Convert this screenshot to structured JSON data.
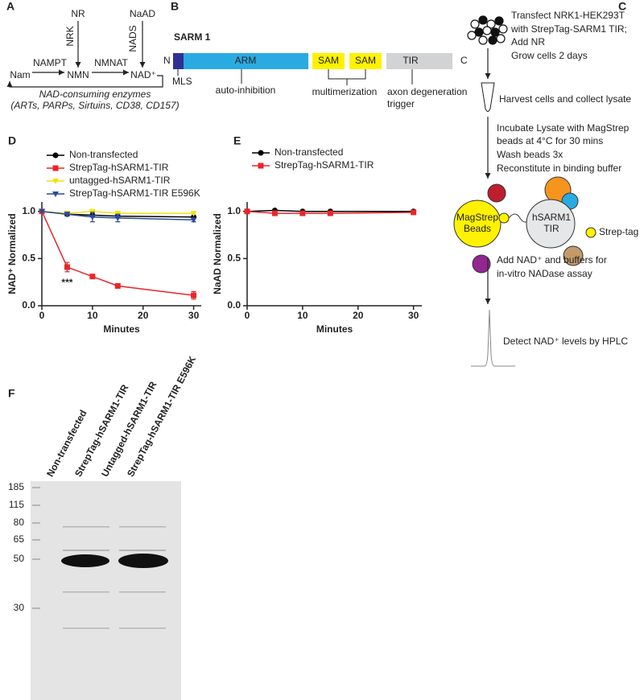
{
  "panel_a": {
    "label": "A",
    "nr": "NR",
    "naad": "NaAD",
    "nrk": "NRK",
    "nads": "NADS",
    "nampt": "NAMPT",
    "nmnat": "NMNAT",
    "nam": "Nam",
    "nmn": "NMN",
    "nad": "NAD⁺",
    "consumers": "NAD-consuming enzymes",
    "consumers_list": "(ARTs, PARPs, Sirtuins, CD38, CD157)"
  },
  "panel_b": {
    "label": "B",
    "protein": "SARM 1",
    "n_term": "N",
    "c_term": "C",
    "arm": "ARM",
    "sam1": "SAM",
    "sam2": "SAM",
    "tir": "TIR",
    "mls": "MLS",
    "arm_note": "auto-inhibition",
    "sam_note": "multimerization",
    "tir_note": [
      "axon degeneration",
      "trigger"
    ]
  },
  "panel_c": {
    "label": "C",
    "step1": [
      "Transfect NRK1-HEK293T",
      "with StrepTag-SARM1 TIR;",
      "Add NR",
      "Grow cells 2 days"
    ],
    "step2": "Harvest cells and collect lysate",
    "step3": [
      "Incubate Lysate with MagStrep",
      "beads at 4°C for 30 mins",
      "Wash beads 3x",
      "Reconstitute in binding buffer"
    ],
    "beads": [
      "MagStrep",
      "Beads"
    ],
    "protein": [
      "hSARM1",
      "TIR"
    ],
    "tag": "Strep-tag",
    "step4": [
      "Add NAD⁺ and buffers for",
      "in-vitro NADase assay"
    ],
    "step5": "Detect NAD⁺ levels by HPLC"
  },
  "chart_data": [
    {
      "type": "line",
      "label": "D",
      "xlabel": "Minutes",
      "ylabel": "NAD⁺ Normalized",
      "annotation": "***",
      "legend": "top-left",
      "x": [
        0,
        5,
        10,
        15,
        30
      ],
      "xlim": [
        0,
        31.5
      ],
      "ylim": [
        0,
        1.1
      ],
      "xticks": [
        0,
        10,
        20,
        30
      ],
      "yticks": [
        {
          "value": 0,
          "label": "0.0"
        },
        {
          "value": 0.5,
          "label": "0.5"
        },
        {
          "value": 1,
          "label": "1.0"
        }
      ],
      "series": [
        {
          "name": "Non-transfected",
          "color": "#000000",
          "marker": "circle",
          "values": [
            1.0,
            0.97,
            0.96,
            0.95,
            0.94
          ],
          "errors": [
            0,
            0.01,
            0.01,
            0.01,
            0.01
          ]
        },
        {
          "name": "StrepTag-hSARM1-TIR",
          "color": "#e8262a",
          "marker": "square",
          "values": [
            1.0,
            0.41,
            0.31,
            0.21,
            0.11
          ],
          "errors": [
            0,
            0.05,
            0.02,
            0.015,
            0.04
          ]
        },
        {
          "name": "untagged-hSARM1-TIR",
          "color": "#f0e20f",
          "marker": "triangle-down",
          "values": [
            1.0,
            0.98,
            1.0,
            0.98,
            0.98
          ],
          "errors": [
            0,
            0.01,
            0.01,
            0.01,
            0.01
          ]
        },
        {
          "name": "StrepTag-hSARM1-TIR E596K",
          "color": "#2c4a9a",
          "marker": "triangle-down",
          "values": [
            1.0,
            0.97,
            0.94,
            0.93,
            0.91
          ],
          "errors": [
            0,
            0.02,
            0.05,
            0.04,
            0.02
          ]
        }
      ]
    },
    {
      "type": "line",
      "label": "E",
      "xlabel": "Minutes",
      "ylabel": "NaAD Normalized",
      "legend": "top-left",
      "x": [
        0,
        5,
        10,
        15,
        30
      ],
      "xlim": [
        0,
        31.5
      ],
      "ylim": [
        0,
        1.1
      ],
      "xticks": [
        0,
        10,
        20,
        30
      ],
      "yticks": [
        {
          "value": 0,
          "label": "0.0"
        },
        {
          "value": 0.5,
          "label": "0.5"
        },
        {
          "value": 1,
          "label": "1.0"
        }
      ],
      "series": [
        {
          "name": "Non-transfected",
          "color": "#000000",
          "marker": "circle",
          "values": [
            1.0,
            1.01,
            1.0,
            1.0,
            1.0
          ],
          "errors": [
            0,
            0.01,
            0.01,
            0.01,
            0.01
          ]
        },
        {
          "name": "StrepTag-hSARM1-TIR",
          "color": "#e8262a",
          "marker": "square",
          "values": [
            1.0,
            0.98,
            0.98,
            0.98,
            0.99
          ],
          "errors": [
            0,
            0.01,
            0.01,
            0.01,
            0.01
          ]
        }
      ]
    }
  ],
  "panel_f": {
    "label": "F",
    "lanes": [
      "Non-transfected",
      "StrepTag-hSARM1-TIR",
      "Untagged-hSARM1-TIR",
      "StrepTag-hSARM1-TIR E596K"
    ],
    "markers": [
      185,
      115,
      80,
      65,
      50,
      30
    ]
  }
}
